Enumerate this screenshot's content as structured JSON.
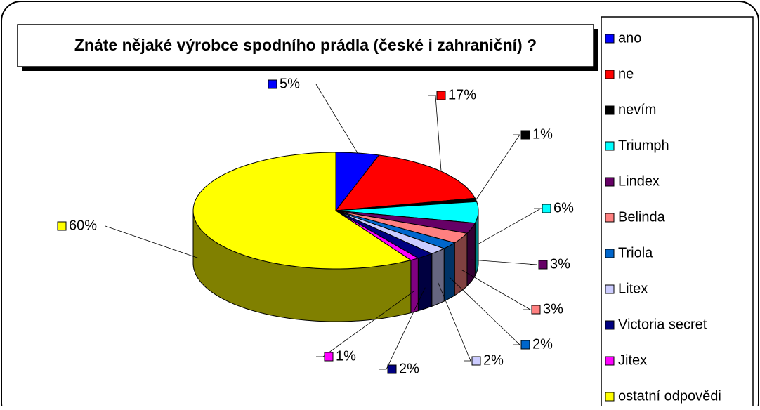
{
  "chart_data": {
    "type": "pie3d",
    "title": "Znáte nějaké výrobce spodního prádla (české i zahraniční) ?",
    "categories": [
      "ano",
      "ne",
      "nevím",
      "Triumph",
      "Lindex",
      "Belinda",
      "Triola",
      "Litex",
      "Victoria secret",
      "Jitex",
      "ostatní odpovědi"
    ],
    "values": [
      5,
      17,
      1,
      6,
      3,
      3,
      2,
      2,
      2,
      1,
      60
    ],
    "value_labels": [
      "5%",
      "17%",
      "1%",
      "6%",
      "3%",
      "3%",
      "2%",
      "2%",
      "2%",
      "1%",
      "60%"
    ],
    "colors": [
      "#0000ff",
      "#ff0000",
      "#000000",
      "#00ffff",
      "#660066",
      "#ff8080",
      "#0066cc",
      "#ccccff",
      "#000080",
      "#ff00ff",
      "#ffff00"
    ],
    "legend": "right"
  }
}
